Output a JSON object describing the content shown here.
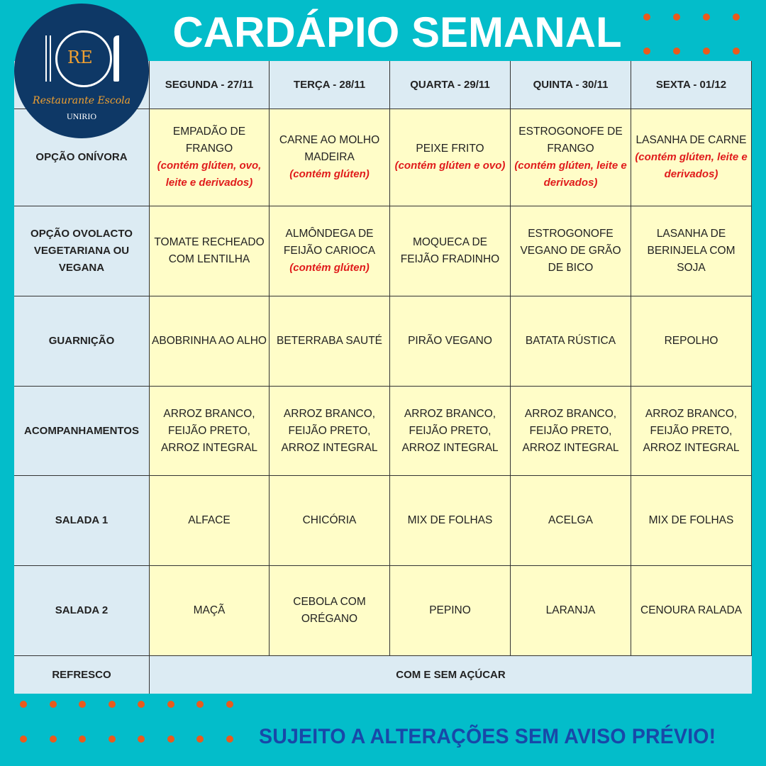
{
  "title": "CARDÁPIO SEMANAL",
  "logo": {
    "initials": "RE",
    "name": "Restaurante Escola",
    "org": "UNIRIO"
  },
  "colors": {
    "background": "#03bdca",
    "dots": "#ea5a1c",
    "footer": "#1848a8",
    "allergen": "#e01b1b",
    "cell": "#fffdc8",
    "header": "#dcebf3"
  },
  "days": [
    "SEGUNDA - 27/11",
    "TERÇA - 28/11",
    "QUARTA - 29/11",
    "QUINTA - 30/11",
    "SEXTA - 01/12"
  ],
  "rows": [
    {
      "label": "OPÇÃO ONÍVORA",
      "cells": [
        {
          "text": "EMPADÃO DE FRANGO",
          "note": "(contém glúten, ovo, leite e derivados)"
        },
        {
          "text": "CARNE AO MOLHO MADEIRA",
          "note": "(contém glúten)"
        },
        {
          "text": "PEIXE FRITO",
          "note": "(contém glúten e ovo)"
        },
        {
          "text": "ESTROGONOFE DE FRANGO",
          "note": "(contém glúten, leite e derivados)"
        },
        {
          "text": "LASANHA DE CARNE",
          "note": "(contém glúten, leite e derivados)"
        }
      ]
    },
    {
      "label": "OPÇÃO OVOLACTO VEGETARIANA OU VEGANA",
      "cells": [
        {
          "text": "TOMATE RECHEADO COM LENTILHA"
        },
        {
          "text": "ALMÔNDEGA DE FEIJÃO CARIOCA",
          "note": "(contém glúten)"
        },
        {
          "text": "MOQUECA DE FEIJÃO FRADINHO"
        },
        {
          "text": "ESTROGONOFE VEGANO DE GRÃO DE BICO"
        },
        {
          "text": "LASANHA DE BERINJELA COM SOJA"
        }
      ]
    },
    {
      "label": "GUARNIÇÃO",
      "cells": [
        {
          "text": "ABOBRINHA AO ALHO"
        },
        {
          "text": "BETERRABA SAUTÉ"
        },
        {
          "text": "PIRÃO VEGANO"
        },
        {
          "text": "BATATA RÚSTICA"
        },
        {
          "text": "REPOLHO"
        }
      ]
    },
    {
      "label": "ACOMPANHAMENTOS",
      "cells": [
        {
          "text": "ARROZ BRANCO, FEIJÃO PRETO, ARROZ INTEGRAL"
        },
        {
          "text": "ARROZ BRANCO, FEIJÃO PRETO, ARROZ INTEGRAL"
        },
        {
          "text": "ARROZ BRANCO, FEIJÃO PRETO, ARROZ INTEGRAL"
        },
        {
          "text": "ARROZ BRANCO, FEIJÃO PRETO, ARROZ INTEGRAL"
        },
        {
          "text": "ARROZ BRANCO, FEIJÃO PRETO, ARROZ INTEGRAL"
        }
      ]
    },
    {
      "label": "SALADA 1",
      "cells": [
        {
          "text": "ALFACE"
        },
        {
          "text": "CHICÓRIA"
        },
        {
          "text": "MIX DE FOLHAS"
        },
        {
          "text": "ACELGA"
        },
        {
          "text": "MIX DE FOLHAS"
        }
      ]
    },
    {
      "label": "SALADA 2",
      "cells": [
        {
          "text": "MAÇÃ"
        },
        {
          "text": "CEBOLA COM ORÉGANO"
        },
        {
          "text": "PEPINO"
        },
        {
          "text": "LARANJA"
        },
        {
          "text": "CENOURA RALADA"
        }
      ]
    }
  ],
  "refresco": {
    "label": "REFRESCO",
    "value": "COM E SEM AÇÚCAR"
  },
  "footer": "SUJEITO A ALTERAÇÕES SEM AVISO PRÉVIO!"
}
